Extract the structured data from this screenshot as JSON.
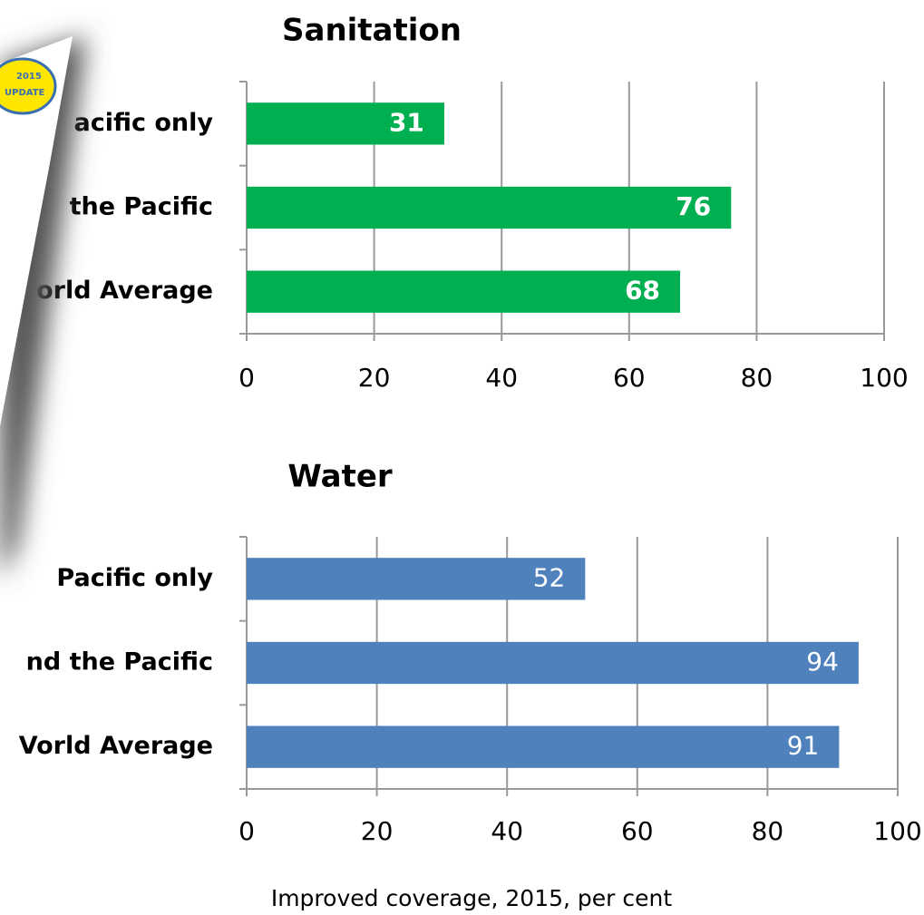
{
  "chart_data": [
    {
      "type": "bar",
      "orientation": "horizontal",
      "title": "Sanitation",
      "categories": [
        "acific only",
        "the Pacific",
        "orld Average"
      ],
      "values": [
        31,
        76,
        68
      ],
      "color": "#00b050",
      "xlim": [
        0,
        100
      ],
      "xticks": [
        0,
        20,
        40,
        60,
        80,
        100
      ],
      "grid": true
    },
    {
      "type": "bar",
      "orientation": "horizontal",
      "title": "Water",
      "categories": [
        "Pacific only",
        "nd the Pacific",
        "Vorld Average"
      ],
      "values": [
        52,
        94,
        91
      ],
      "color": "#4f81bd",
      "xlim": [
        0,
        100
      ],
      "xticks": [
        0,
        20,
        40,
        60,
        80,
        100
      ],
      "grid": true,
      "x_label": "Improved coverage, 2015, per cent"
    }
  ],
  "badge": {
    "line1": "2015",
    "line2": "UPDATE"
  }
}
